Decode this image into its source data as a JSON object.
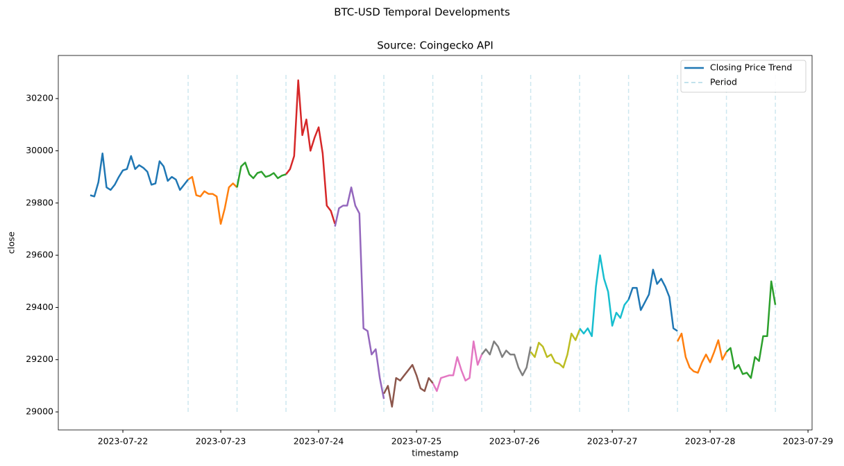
{
  "chart_data": {
    "type": "line",
    "suptitle": "BTC-USD Temporal Developments",
    "title": "Source: Coingecko API",
    "xlabel": "timestamp",
    "ylabel": "close",
    "xlim": [
      "2023-07-21 08:10",
      "2023-07-29 01:00"
    ],
    "xticks": [
      "2023-07-22",
      "2023-07-23",
      "2023-07-24",
      "2023-07-25",
      "2023-07-26",
      "2023-07-27",
      "2023-07-28",
      "2023-07-29"
    ],
    "ylim": [
      28931,
      30365
    ],
    "yticks": [
      29000,
      29200,
      29400,
      29600,
      29800,
      30000,
      30200
    ],
    "legend": {
      "loc": "upper right",
      "entries": [
        "Closing Price Trend",
        "Period"
      ],
      "colors": [
        "#1f77b4",
        "#add8e6"
      ]
    },
    "periods": [
      "2023-07-22 16:00",
      "2023-07-23 04:00",
      "2023-07-23 16:00",
      "2023-07-24 04:00",
      "2023-07-24 16:00",
      "2023-07-25 04:00",
      "2023-07-25 16:00",
      "2023-07-26 04:00",
      "2023-07-26 16:00",
      "2023-07-27 04:00",
      "2023-07-27 16:00",
      "2023-07-28 04:00",
      "2023-07-28 16:00"
    ],
    "period_span": [
      29000,
      30300
    ],
    "period_color": "#add8e6",
    "series": [
      {
        "color": "#1f77b4",
        "x": [
          "2023-07-21 16:00",
          "2023-07-21 17:00",
          "2023-07-21 18:00",
          "2023-07-21 19:00",
          "2023-07-21 20:00",
          "2023-07-21 21:00",
          "2023-07-21 22:00",
          "2023-07-21 23:00",
          "2023-07-22 00:00",
          "2023-07-22 01:00",
          "2023-07-22 02:00",
          "2023-07-22 03:00",
          "2023-07-22 04:00",
          "2023-07-22 05:00",
          "2023-07-22 06:00",
          "2023-07-22 07:00",
          "2023-07-22 08:00",
          "2023-07-22 09:00",
          "2023-07-22 10:00",
          "2023-07-22 11:00",
          "2023-07-22 12:00",
          "2023-07-22 13:00",
          "2023-07-22 14:00",
          "2023-07-22 15:00",
          "2023-07-22 16:00"
        ],
        "values": [
          29830,
          29825,
          29880,
          29990,
          29860,
          29850,
          29870,
          29900,
          29925,
          29930,
          29980,
          29930,
          29945,
          29935,
          29920,
          29870,
          29875,
          29960,
          29940,
          29885,
          29900,
          29890,
          29850,
          29870,
          29890
        ]
      },
      {
        "color": "#ff7f0e",
        "x": [
          "2023-07-22 16:00",
          "2023-07-22 17:00",
          "2023-07-22 18:00",
          "2023-07-22 19:00",
          "2023-07-22 20:00",
          "2023-07-22 21:00",
          "2023-07-22 22:00",
          "2023-07-22 23:00",
          "2023-07-23 00:00",
          "2023-07-23 01:00",
          "2023-07-23 02:00",
          "2023-07-23 03:00",
          "2023-07-23 04:00"
        ],
        "values": [
          29890,
          29900,
          29830,
          29825,
          29845,
          29835,
          29835,
          29825,
          29720,
          29780,
          29860,
          29875,
          29860
        ]
      },
      {
        "color": "#2ca02c",
        "x": [
          "2023-07-23 04:00",
          "2023-07-23 05:00",
          "2023-07-23 06:00",
          "2023-07-23 07:00",
          "2023-07-23 08:00",
          "2023-07-23 09:00",
          "2023-07-23 10:00",
          "2023-07-23 11:00",
          "2023-07-23 12:00",
          "2023-07-23 13:00",
          "2023-07-23 14:00",
          "2023-07-23 15:00",
          "2023-07-23 16:00"
        ],
        "values": [
          29860,
          29940,
          29955,
          29910,
          29895,
          29915,
          29920,
          29900,
          29905,
          29915,
          29895,
          29905,
          29910
        ]
      },
      {
        "color": "#d62728",
        "x": [
          "2023-07-23 16:00",
          "2023-07-23 17:00",
          "2023-07-23 18:00",
          "2023-07-23 19:00",
          "2023-07-23 20:00",
          "2023-07-23 21:00",
          "2023-07-23 22:00",
          "2023-07-23 23:00",
          "2023-07-24 00:00",
          "2023-07-24 01:00",
          "2023-07-24 02:00",
          "2023-07-24 03:00",
          "2023-07-24 04:00"
        ],
        "values": [
          29910,
          29930,
          29980,
          30270,
          30060,
          30120,
          30000,
          30050,
          30090,
          29990,
          29790,
          29770,
          29720
        ]
      },
      {
        "color": "#9467bd",
        "x": [
          "2023-07-24 04:00",
          "2023-07-24 05:00",
          "2023-07-24 06:00",
          "2023-07-24 07:00",
          "2023-07-24 08:00",
          "2023-07-24 09:00",
          "2023-07-24 10:00",
          "2023-07-24 11:00",
          "2023-07-24 12:00",
          "2023-07-24 13:00",
          "2023-07-24 14:00",
          "2023-07-24 15:00",
          "2023-07-24 16:00"
        ],
        "values": [
          29710,
          29780,
          29790,
          29790,
          29860,
          29790,
          29760,
          29320,
          29310,
          29220,
          29240,
          29130,
          29050
        ]
      },
      {
        "color": "#8c564b",
        "x": [
          "2023-07-24 16:00",
          "2023-07-24 17:00",
          "2023-07-24 18:00",
          "2023-07-24 19:00",
          "2023-07-24 20:00",
          "2023-07-24 21:00",
          "2023-07-24 22:00",
          "2023-07-24 23:00",
          "2023-07-25 00:00",
          "2023-07-25 01:00",
          "2023-07-25 02:00",
          "2023-07-25 03:00",
          "2023-07-25 04:00"
        ],
        "values": [
          29070,
          29100,
          29020,
          29130,
          29120,
          29140,
          29160,
          29180,
          29140,
          29090,
          29080,
          29130,
          29110
        ]
      },
      {
        "color": "#e377c2",
        "x": [
          "2023-07-25 04:00",
          "2023-07-25 05:00",
          "2023-07-25 06:00",
          "2023-07-25 07:00",
          "2023-07-25 08:00",
          "2023-07-25 09:00",
          "2023-07-25 10:00",
          "2023-07-25 11:00",
          "2023-07-25 12:00",
          "2023-07-25 13:00",
          "2023-07-25 14:00",
          "2023-07-25 15:00",
          "2023-07-25 16:00"
        ],
        "values": [
          29110,
          29080,
          29130,
          29135,
          29140,
          29140,
          29210,
          29160,
          29120,
          29130,
          29270,
          29180,
          29220
        ]
      },
      {
        "color": "#7f7f7f",
        "x": [
          "2023-07-25 16:00",
          "2023-07-25 17:00",
          "2023-07-25 18:00",
          "2023-07-25 19:00",
          "2023-07-25 20:00",
          "2023-07-25 21:00",
          "2023-07-25 22:00",
          "2023-07-25 23:00",
          "2023-07-26 00:00",
          "2023-07-26 01:00",
          "2023-07-26 02:00",
          "2023-07-26 03:00",
          "2023-07-26 04:00"
        ],
        "values": [
          29220,
          29240,
          29220,
          29270,
          29250,
          29210,
          29235,
          29220,
          29220,
          29170,
          29140,
          29170,
          29250
        ]
      },
      {
        "color": "#bcbd22",
        "x": [
          "2023-07-26 04:00",
          "2023-07-26 05:00",
          "2023-07-26 06:00",
          "2023-07-26 07:00",
          "2023-07-26 08:00",
          "2023-07-26 09:00",
          "2023-07-26 10:00",
          "2023-07-26 11:00",
          "2023-07-26 12:00",
          "2023-07-26 13:00",
          "2023-07-26 14:00",
          "2023-07-26 15:00",
          "2023-07-26 16:00"
        ],
        "values": [
          29230,
          29210,
          29265,
          29250,
          29210,
          29220,
          29190,
          29185,
          29170,
          29220,
          29300,
          29275,
          29315
        ]
      },
      {
        "color": "#17becf",
        "x": [
          "2023-07-26 16:00",
          "2023-07-26 17:00",
          "2023-07-26 18:00",
          "2023-07-26 19:00",
          "2023-07-26 20:00",
          "2023-07-26 21:00",
          "2023-07-26 22:00",
          "2023-07-26 23:00",
          "2023-07-27 00:00",
          "2023-07-27 01:00",
          "2023-07-27 02:00",
          "2023-07-27 03:00",
          "2023-07-27 04:00"
        ],
        "values": [
          29320,
          29300,
          29320,
          29290,
          29480,
          29600,
          29510,
          29460,
          29330,
          29380,
          29360,
          29410,
          29430
        ]
      },
      {
        "color": "#1f77b4",
        "x": [
          "2023-07-27 04:00",
          "2023-07-27 05:00",
          "2023-07-27 06:00",
          "2023-07-27 07:00",
          "2023-07-27 08:00",
          "2023-07-27 09:00",
          "2023-07-27 10:00",
          "2023-07-27 11:00",
          "2023-07-27 12:00",
          "2023-07-27 13:00",
          "2023-07-27 14:00",
          "2023-07-27 15:00",
          "2023-07-27 16:00"
        ],
        "values": [
          29430,
          29475,
          29475,
          29390,
          29420,
          29450,
          29545,
          29490,
          29510,
          29480,
          29440,
          29320,
          29310
        ]
      },
      {
        "color": "#ff7f0e",
        "x": [
          "2023-07-27 16:00",
          "2023-07-27 17:00",
          "2023-07-27 18:00",
          "2023-07-27 19:00",
          "2023-07-27 20:00",
          "2023-07-27 21:00",
          "2023-07-27 22:00",
          "2023-07-27 23:00",
          "2023-07-28 00:00",
          "2023-07-28 01:00",
          "2023-07-28 02:00",
          "2023-07-28 03:00",
          "2023-07-28 04:00"
        ],
        "values": [
          29270,
          29300,
          29210,
          29170,
          29155,
          29150,
          29190,
          29220,
          29190,
          29230,
          29275,
          29200,
          29230
        ]
      },
      {
        "color": "#2ca02c",
        "x": [
          "2023-07-28 04:00",
          "2023-07-28 05:00",
          "2023-07-28 06:00",
          "2023-07-28 07:00",
          "2023-07-28 08:00",
          "2023-07-28 09:00",
          "2023-07-28 10:00",
          "2023-07-28 11:00",
          "2023-07-28 12:00",
          "2023-07-28 13:00",
          "2023-07-28 14:00",
          "2023-07-28 15:00",
          "2023-07-28 16:00"
        ],
        "values": [
          29230,
          29245,
          29165,
          29180,
          29145,
          29150,
          29130,
          29210,
          29195,
          29290,
          29290,
          29500,
          29410
        ]
      }
    ]
  }
}
